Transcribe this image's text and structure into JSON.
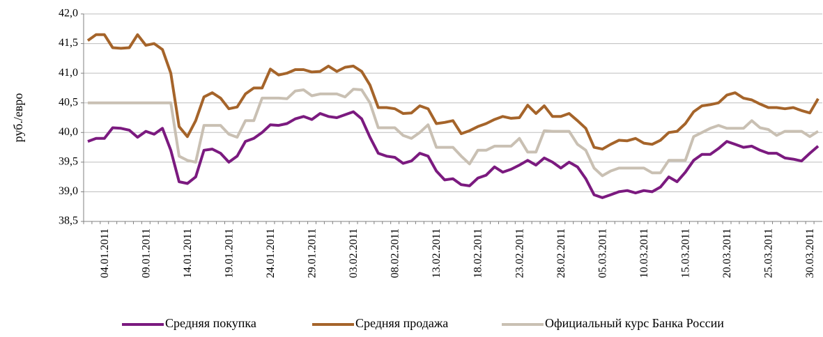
{
  "chart_data": {
    "type": "line",
    "y_label": "руб./евро",
    "categories": [
      null,
      null,
      "04.01.2011",
      null,
      null,
      null,
      null,
      "09.01.2011",
      null,
      null,
      null,
      null,
      "14.01.2011",
      null,
      null,
      null,
      null,
      "19.01.2011",
      null,
      null,
      null,
      null,
      "24.01.2011",
      null,
      null,
      null,
      null,
      "29.01.2011",
      null,
      null,
      null,
      null,
      "03.02.2011",
      null,
      null,
      null,
      null,
      "08.02.2011",
      null,
      null,
      null,
      null,
      "13.02.2011",
      null,
      null,
      null,
      null,
      "18.02.2011",
      null,
      null,
      null,
      null,
      "23.02.2011",
      null,
      null,
      null,
      null,
      "28.02.2011",
      null,
      null,
      null,
      null,
      "05.03.2011",
      null,
      null,
      null,
      null,
      "10.03.2011",
      null,
      null,
      null,
      null,
      "15.03.2011",
      null,
      null,
      null,
      null,
      "20.03.2011",
      null,
      null,
      null,
      null,
      "25.03.2011",
      null,
      null,
      null,
      null,
      "30.03.2011",
      null
    ],
    "series": [
      {
        "name": "Средняя покупка",
        "color": "#7b1a7f",
        "values": [
          39.85,
          39.9,
          39.9,
          40.08,
          40.07,
          40.04,
          39.92,
          40.02,
          39.97,
          40.07,
          39.7,
          39.17,
          39.14,
          39.25,
          39.7,
          39.72,
          39.65,
          39.5,
          39.6,
          39.85,
          39.9,
          40.0,
          40.13,
          40.12,
          40.15,
          40.23,
          40.27,
          40.22,
          40.32,
          40.27,
          40.25,
          40.3,
          40.35,
          40.23,
          39.92,
          39.65,
          39.6,
          39.58,
          39.48,
          39.52,
          39.65,
          39.6,
          39.35,
          39.2,
          39.22,
          39.12,
          39.1,
          39.23,
          39.28,
          39.42,
          39.33,
          39.38,
          39.45,
          39.53,
          39.45,
          39.57,
          39.5,
          39.4,
          39.5,
          39.42,
          39.22,
          38.95,
          38.9,
          38.95,
          39.0,
          39.02,
          38.98,
          39.02,
          39.0,
          39.08,
          39.25,
          39.17,
          39.33,
          39.53,
          39.63,
          39.63,
          39.73,
          39.85,
          39.8,
          39.75,
          39.77,
          39.7,
          39.65,
          39.65,
          39.57,
          39.55,
          39.52,
          39.65,
          39.77
        ]
      },
      {
        "name": "Средняя продажа",
        "color": "#a5642a",
        "values": [
          41.55,
          41.65,
          41.65,
          41.43,
          41.42,
          41.43,
          41.65,
          41.47,
          41.5,
          41.4,
          41.0,
          40.1,
          39.93,
          40.2,
          40.6,
          40.67,
          40.58,
          40.4,
          40.43,
          40.65,
          40.75,
          40.75,
          41.07,
          40.97,
          41.0,
          41.06,
          41.06,
          41.02,
          41.03,
          41.12,
          41.03,
          41.1,
          41.12,
          41.03,
          40.8,
          40.42,
          40.42,
          40.4,
          40.32,
          40.33,
          40.45,
          40.4,
          40.15,
          40.17,
          40.2,
          39.98,
          40.03,
          40.1,
          40.15,
          40.22,
          40.27,
          40.24,
          40.25,
          40.46,
          40.32,
          40.45,
          40.27,
          40.27,
          40.32,
          40.2,
          40.07,
          39.75,
          39.72,
          39.8,
          39.87,
          39.86,
          39.9,
          39.82,
          39.8,
          39.87,
          40.0,
          40.02,
          40.15,
          40.35,
          40.45,
          40.47,
          40.5,
          40.63,
          40.67,
          40.58,
          40.55,
          40.48,
          40.42,
          40.42,
          40.4,
          40.42,
          40.37,
          40.33,
          40.57
        ]
      },
      {
        "name": "Официальный курс Банка России",
        "color": "#c9c0b3",
        "values": [
          40.5,
          40.5,
          40.5,
          40.5,
          40.5,
          40.5,
          40.5,
          40.5,
          40.5,
          40.5,
          40.5,
          39.6,
          39.53,
          39.5,
          40.12,
          40.12,
          40.12,
          39.97,
          39.92,
          40.2,
          40.2,
          40.58,
          40.58,
          40.58,
          40.57,
          40.7,
          40.72,
          40.62,
          40.65,
          40.65,
          40.65,
          40.6,
          40.73,
          40.72,
          40.5,
          40.08,
          40.08,
          40.08,
          39.95,
          39.9,
          40.0,
          40.13,
          39.75,
          39.75,
          39.75,
          39.6,
          39.47,
          39.7,
          39.7,
          39.77,
          39.77,
          39.77,
          39.9,
          39.67,
          39.67,
          40.03,
          40.02,
          40.02,
          40.02,
          39.8,
          39.7,
          39.4,
          39.27,
          39.35,
          39.4,
          39.4,
          39.4,
          39.4,
          39.32,
          39.32,
          39.53,
          39.53,
          39.53,
          39.93,
          40.0,
          40.07,
          40.12,
          40.07,
          40.07,
          40.07,
          40.2,
          40.08,
          40.05,
          39.95,
          40.02,
          40.02,
          40.02,
          39.93,
          40.02
        ]
      }
    ],
    "ylim": [
      38.5,
      42.0
    ],
    "yticks": [
      {
        "value": 38.5,
        "label": "38,5"
      },
      {
        "value": 39.0,
        "label": "39,0"
      },
      {
        "value": 39.5,
        "label": "39,5"
      },
      {
        "value": 40.0,
        "label": "40,0"
      },
      {
        "value": 40.5,
        "label": "40,5"
      },
      {
        "value": 41.0,
        "label": "41,0"
      },
      {
        "value": 41.5,
        "label": "41,5"
      },
      {
        "value": 42.0,
        "label": "42,0"
      }
    ],
    "grid": true
  }
}
